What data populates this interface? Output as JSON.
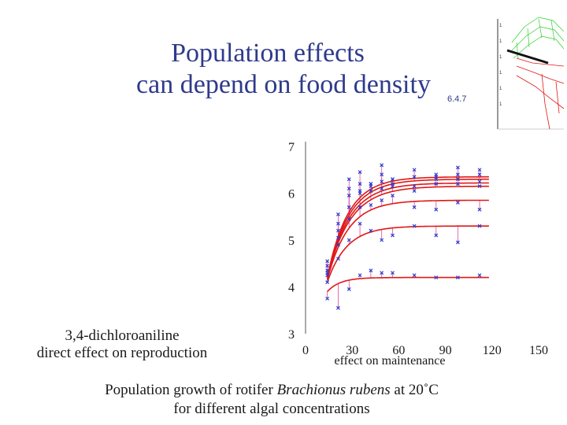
{
  "slide": {
    "title_line1": "Population effects",
    "title_line2": "can depend on food density",
    "section": "6.4.7",
    "left_label_line1": "3,4-dichloroaniline",
    "left_label_line2": "direct effect on reproduction",
    "caption_line1_pre": "Population growth of rotifer ",
    "caption_line1_italic": "Brachionus rubens",
    "caption_line1_post": " at 20˚C",
    "caption_line2": "for different algal concentrations",
    "thumbnail_icon": "3d-surface-plot-icon"
  },
  "chart_data": {
    "type": "line",
    "x_ticks": [
      "0",
      "30",
      "60",
      "90",
      "120",
      "150"
    ],
    "y_ticks": [
      "3",
      "4",
      "5",
      "6",
      "7"
    ],
    "xlim": [
      0,
      150
    ],
    "ylim": [
      3,
      7
    ],
    "inner_label": "effect on maintenance",
    "colors": {
      "curve": "#e01818",
      "dropline": "#e0489a",
      "marker": "#2a3bd0",
      "axis": "#555555"
    },
    "x_obs": [
      14,
      21,
      28,
      35,
      42,
      49,
      56,
      70,
      84,
      98,
      112
    ],
    "series": [
      {
        "x0": 14,
        "y0": 4.2,
        "asymptote": 6.35,
        "rate": 0.075,
        "observed": [
          4.55,
          5.55,
          6.3,
          6.45,
          6.2,
          6.6,
          6.3,
          6.5,
          6.4,
          6.55,
          6.5
        ]
      },
      {
        "x0": 14,
        "y0": 4.2,
        "asymptote": 6.3,
        "rate": 0.072,
        "observed": [
          4.45,
          5.35,
          6.1,
          6.2,
          6.05,
          6.4,
          6.2,
          6.35,
          6.3,
          6.4,
          6.4
        ]
      },
      {
        "x0": 14,
        "y0": 4.2,
        "asymptote": 6.22,
        "rate": 0.07,
        "observed": [
          4.35,
          5.2,
          5.95,
          6.05,
          6.15,
          6.25,
          6.3,
          6.15,
          6.35,
          6.2,
          6.25
        ]
      },
      {
        "x0": 14,
        "y0": 4.2,
        "asymptote": 6.15,
        "rate": 0.068,
        "observed": [
          4.3,
          5.05,
          5.7,
          6.0,
          6.2,
          6.1,
          6.15,
          6.05,
          6.2,
          6.3,
          6.15
        ]
      },
      {
        "x0": 14,
        "y0": 4.15,
        "asymptote": 5.85,
        "rate": 0.075,
        "observed": [
          4.25,
          4.9,
          5.45,
          5.7,
          5.75,
          5.85,
          5.95,
          5.7,
          5.65,
          5.8,
          5.65
        ]
      },
      {
        "x0": 14,
        "y0": 4.1,
        "asymptote": 5.3,
        "rate": 0.08,
        "observed": [
          4.1,
          4.6,
          5.0,
          5.35,
          5.2,
          5.0,
          5.1,
          5.3,
          5.1,
          4.95,
          5.3
        ]
      },
      {
        "x0": 14,
        "y0": 3.9,
        "asymptote": 4.2,
        "rate": 0.12,
        "observed": [
          3.75,
          3.55,
          3.95,
          4.25,
          4.35,
          4.3,
          4.3,
          4.25,
          4.2,
          4.2,
          4.25
        ]
      }
    ]
  }
}
